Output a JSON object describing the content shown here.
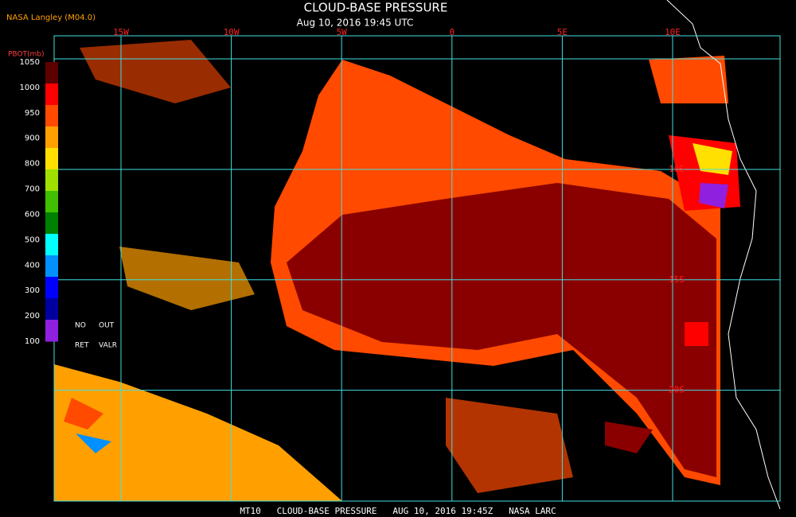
{
  "header": {
    "source": "NASA Langley (M04.0)",
    "title": "CLOUD-BASE PRESSURE",
    "subtitle": "Aug 10, 2016 19:45 UTC"
  },
  "map": {
    "lon_labels": [
      "15W",
      "10W",
      "5W",
      "0",
      "5E",
      "10E"
    ],
    "lat_labels": [
      "10S",
      "15S",
      "20S"
    ]
  },
  "legend": {
    "label": "PBOT(mb)",
    "ticks": [
      1050,
      1000,
      950,
      900,
      800,
      700,
      600,
      500,
      400,
      300,
      200,
      100
    ],
    "colors": [
      "#5c0000",
      "#ff0000",
      "#ff4a00",
      "#ffa000",
      "#ffe000",
      "#a0e000",
      "#40c000",
      "#008000",
      "#00ffff",
      "#0090ff",
      "#0000ff",
      "#0000a0",
      "#9020e0"
    ],
    "notes": [
      "NO",
      "OUT",
      "RET",
      "VALR"
    ]
  },
  "footer": "MT10   CLOUD-BASE PRESSURE   AUG 10, 2016 19:45Z   NASA LARC"
}
